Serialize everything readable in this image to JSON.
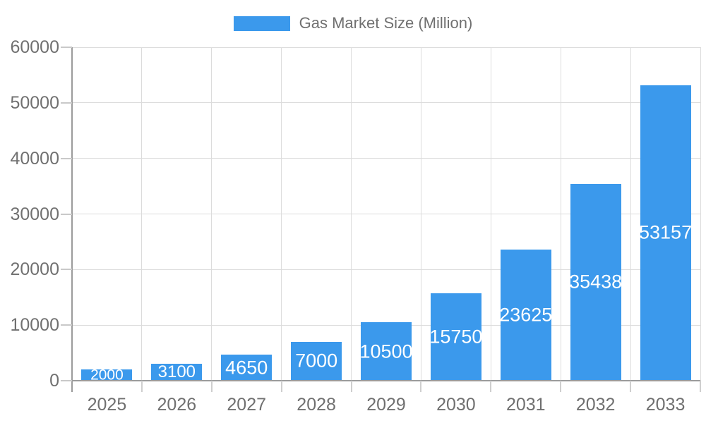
{
  "legend": {
    "label": "Gas Market Size (Million)"
  },
  "colors": {
    "bar": "#3b99ec",
    "bar_label": "#ffffff",
    "axis_text": "#707070",
    "axis_line": "#9b9b9b",
    "gridline": "#dcdcdc",
    "tick": "#c9c9c9",
    "background": "#ffffff"
  },
  "chart_data": {
    "type": "bar",
    "title": "",
    "categories": [
      "2025",
      "2026",
      "2027",
      "2028",
      "2029",
      "2030",
      "2031",
      "2032",
      "2033"
    ],
    "series": [
      {
        "name": "Gas Market Size (Million)",
        "values": [
          2000,
          3100,
          4650,
          7000,
          10500,
          15750,
          23625,
          35438,
          53157
        ]
      }
    ],
    "data_labels": [
      "2000",
      "3100",
      "4650",
      "7000",
      "10500",
      "15750",
      "23625",
      "35438",
      "53157"
    ],
    "xlabel": "",
    "ylabel": "",
    "ylim": [
      0,
      60000
    ],
    "y_ticks": [
      0,
      10000,
      20000,
      30000,
      40000,
      50000,
      60000
    ],
    "grid": true,
    "legend_position": "top",
    "bar_label_position": "inside-center"
  }
}
